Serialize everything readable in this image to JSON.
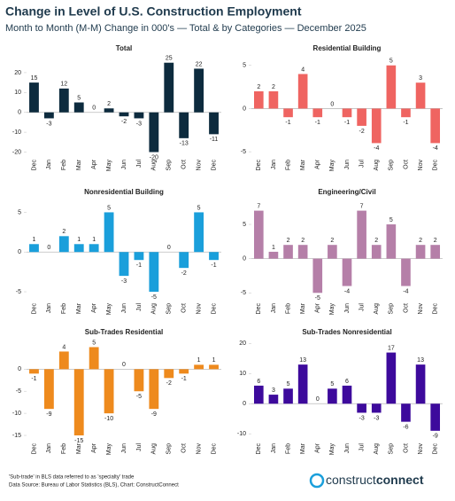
{
  "header": {
    "title": "Change in Level of U.S. Construction Employment",
    "subtitle": "Month to Month (M-M) Change in 000's — Total & by Categories — December 2025"
  },
  "chart_data": [
    {
      "type": "bar",
      "title": "Total",
      "categories": [
        "Dec",
        "Jan",
        "Feb",
        "Mar",
        "Apr",
        "May",
        "Jun",
        "Jul",
        "Aug",
        "Sep",
        "Oct",
        "Nov",
        "Dec"
      ],
      "values": [
        15,
        -3,
        12,
        5,
        0,
        2,
        -2,
        -3,
        -20,
        25,
        -13,
        22,
        -11
      ],
      "color": "#0d2b3e",
      "ylim": [
        -22,
        28
      ],
      "yticks": [
        -20,
        -10,
        0,
        10,
        20
      ],
      "grid": false
    },
    {
      "type": "bar",
      "title": "Residential Building",
      "categories": [
        "Dec",
        "Jan",
        "Feb",
        "Mar",
        "Apr",
        "May",
        "Jun",
        "Jul",
        "Aug",
        "Sep",
        "Oct",
        "Nov",
        "Dec"
      ],
      "values": [
        2,
        2,
        -1,
        4,
        -1,
        0,
        -1,
        -2,
        -4,
        5,
        -1,
        3,
        -4
      ],
      "color": "#ef6461",
      "ylim": [
        -5.5,
        6
      ],
      "yticks": [
        -5,
        0,
        5
      ],
      "grid": false
    },
    {
      "type": "bar",
      "title": "Nonresidential Building",
      "categories": [
        "Dec",
        "Jan",
        "Feb",
        "Mar",
        "Apr",
        "May",
        "Jun",
        "Jul",
        "Aug",
        "Sep",
        "Oct",
        "Nov",
        "Dec"
      ],
      "values": [
        1,
        0,
        2,
        1,
        1,
        5,
        -3,
        -1,
        -5,
        0,
        -2,
        5,
        -1
      ],
      "color": "#1a9fdb",
      "ylim": [
        -6,
        6.5
      ],
      "yticks": [
        -5,
        0,
        5
      ],
      "grid": false
    },
    {
      "type": "bar",
      "title": "Engineering/Civil",
      "categories": [
        "Dec",
        "Jan",
        "Feb",
        "Mar",
        "Apr",
        "May",
        "Jun",
        "Jul",
        "Aug",
        "Sep",
        "Oct",
        "Nov",
        "Dec"
      ],
      "values": [
        7,
        1,
        2,
        2,
        -5,
        2,
        -4,
        7,
        2,
        5,
        -4,
        2,
        2
      ],
      "color": "#b57fa8",
      "ylim": [
        -6,
        8.5
      ],
      "yticks": [
        -5,
        0,
        5
      ],
      "grid": false
    },
    {
      "type": "bar",
      "title": "Sub-Trades Residential",
      "categories": [
        "Dec",
        "Jan",
        "Feb",
        "Mar",
        "Apr",
        "May",
        "Jun",
        "Jul",
        "Aug",
        "Sep",
        "Oct",
        "Nov",
        "Dec"
      ],
      "values": [
        -1,
        -9,
        4,
        -15,
        5,
        -10,
        0,
        -5,
        -9,
        -2,
        -1,
        1,
        1
      ],
      "color": "#ee8a1d",
      "ylim": [
        -16,
        6.5
      ],
      "yticks": [
        -15,
        -10,
        -5,
        0
      ],
      "grid": false
    },
    {
      "type": "bar",
      "title": "Sub-Trades Nonresidential",
      "categories": [
        "Dec",
        "Jan",
        "Feb",
        "Mar",
        "Apr",
        "May",
        "Jun",
        "Jul",
        "Aug",
        "Sep",
        "Oct",
        "Nov",
        "Dec"
      ],
      "values": [
        6,
        3,
        5,
        13,
        0,
        5,
        6,
        -3,
        -3,
        17,
        -6,
        13,
        -9
      ],
      "color": "#3d0a9c",
      "ylim": [
        -12,
        21
      ],
      "yticks": [
        -10,
        0,
        10,
        20
      ],
      "grid": false
    }
  ],
  "footer": {
    "note": "'Sub-trade' in BLS data referred to as 'specialty' trade",
    "source": "Data Source: Bureau of Labor Statistics (BLS), Chart: ConstructConnect",
    "brand": [
      "construct",
      "connect"
    ]
  }
}
